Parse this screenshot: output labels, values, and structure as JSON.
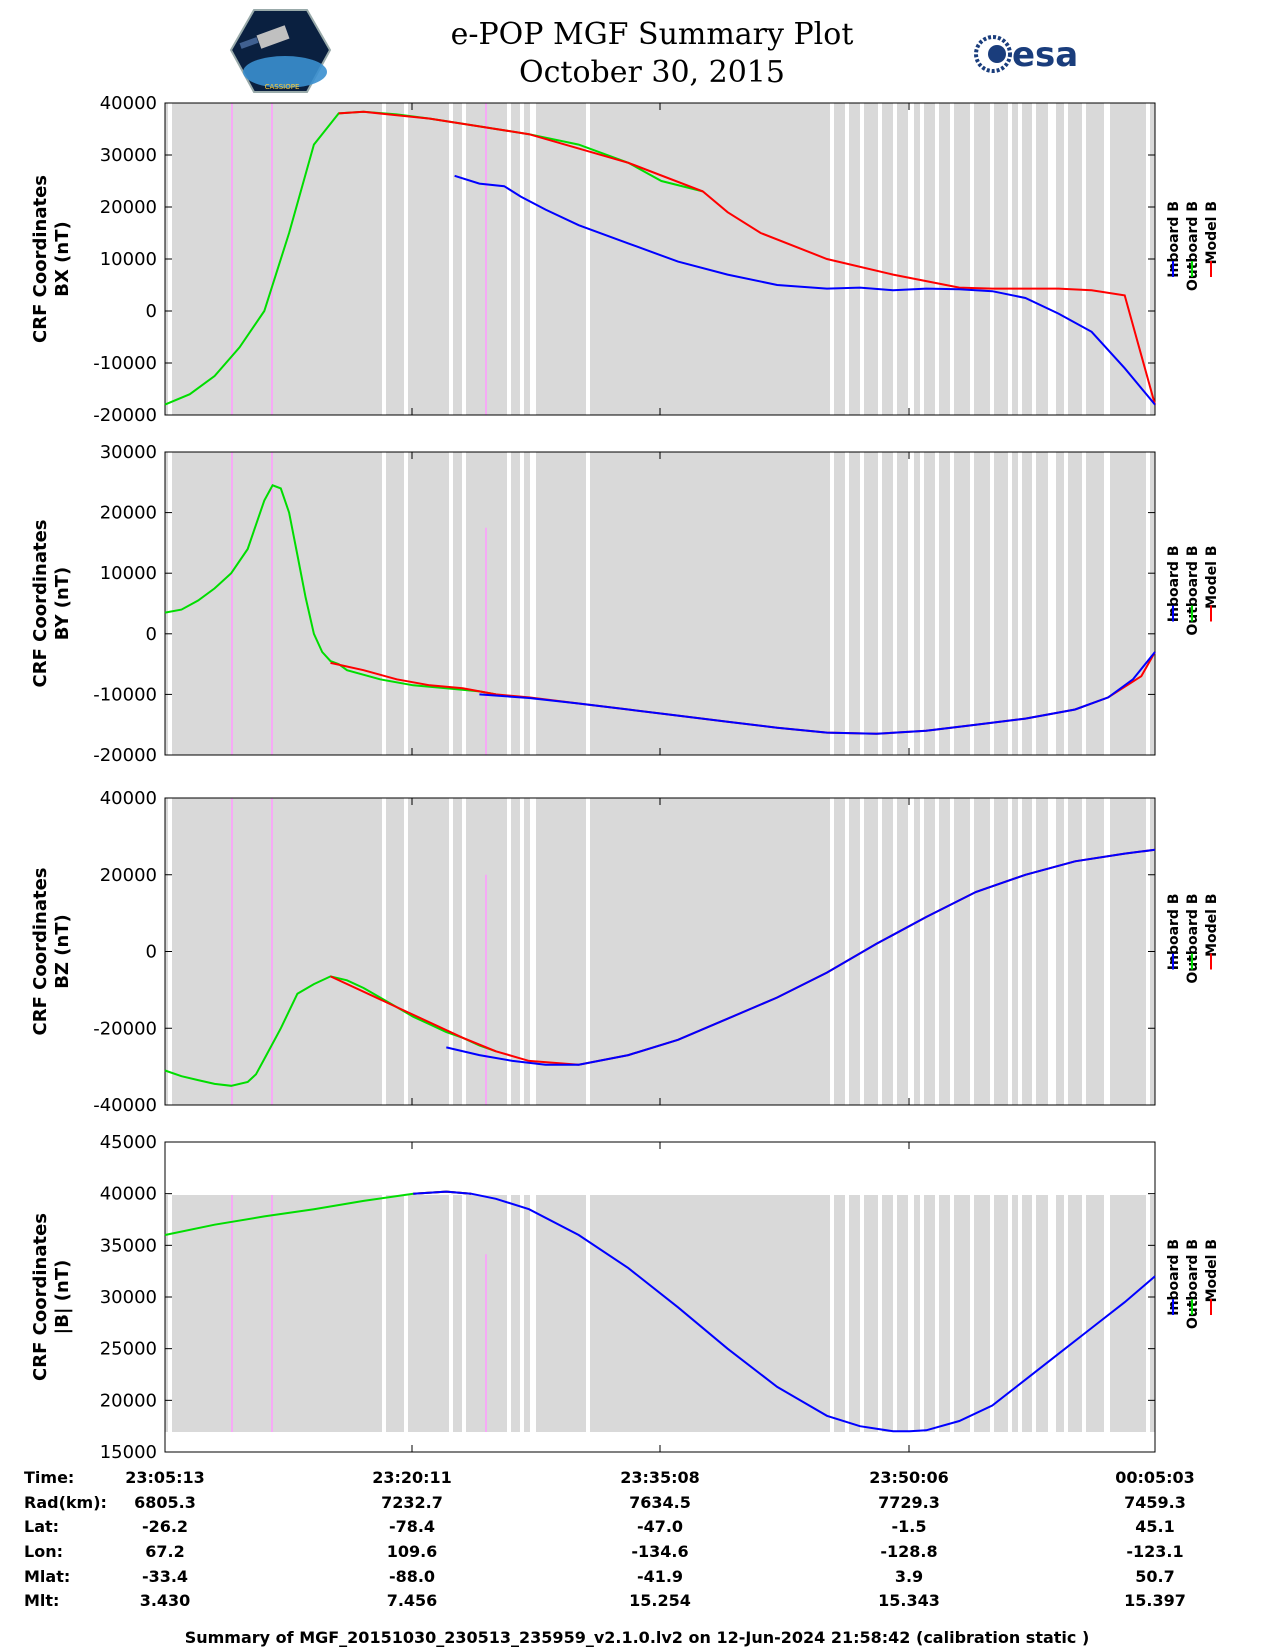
{
  "header": {
    "title": "e-POP MGF Summary Plot",
    "subtitle": "October 30, 2015",
    "logo_left": "CASSIOPE",
    "logo_right": "esa"
  },
  "colors": {
    "inboard": "#0000ff",
    "outboard": "#00dd00",
    "model": "#ff0000",
    "gap_background": "#d9d9d9",
    "marker": "#ff99ff"
  },
  "legend": [
    "Inboard B",
    "Outboard B",
    "Model B"
  ],
  "footer": "Summary of MGF_20151030_230513_235959_v2.1.0.lv2 on 12-Jun-2024 21:58:42 (calibration static )",
  "table": {
    "labels": [
      "Time:",
      "Rad(km):",
      "Lat:",
      "Lon:",
      "Mlat:",
      "Mlt:"
    ],
    "columns": [
      [
        "23:05:13",
        "6805.3",
        "-26.2",
        "67.2",
        "-33.4",
        "3.430"
      ],
      [
        "23:20:11",
        "7232.7",
        "-78.4",
        "109.6",
        "-88.0",
        "7.456"
      ],
      [
        "23:35:08",
        "7634.5",
        "-47.0",
        "-134.6",
        "-41.9",
        "15.254"
      ],
      [
        "23:50:06",
        "7729.3",
        "-1.5",
        "-128.8",
        "3.9",
        "15.343"
      ],
      [
        "00:05:03",
        "7459.3",
        "45.1",
        "-123.1",
        "50.7",
        "15.397"
      ]
    ]
  },
  "chart_data": [
    {
      "type": "line",
      "ylabel": [
        "CRF Coordinates",
        "BX (nT)"
      ],
      "ylim": [
        -20000,
        40000
      ],
      "yticks": [
        -20000,
        -10000,
        0,
        10000,
        20000,
        30000,
        40000
      ],
      "x_unit": "minutes since 23:05:13",
      "xlim": [
        0,
        59.83
      ],
      "series": [
        {
          "name": "Outboard B",
          "color": "outboard",
          "x": [
            0,
            1.5,
            3,
            4.5,
            6,
            7.5,
            9,
            10.5,
            12,
            14,
            16,
            19,
            22,
            25,
            28,
            30,
            32.5
          ],
          "y": [
            -18000,
            -16000,
            -12500,
            -7000,
            0,
            15000,
            32000,
            38000,
            38300,
            37800,
            37000,
            35500,
            34000,
            32000,
            28500,
            25000,
            23000
          ]
        },
        {
          "name": "Model B",
          "color": "model",
          "x": [
            10.5,
            12,
            16,
            22,
            28,
            32.5,
            34,
            36,
            40,
            44,
            48,
            50,
            54,
            56,
            58,
            59.83
          ],
          "y": [
            38000,
            38300,
            37000,
            34000,
            28500,
            23000,
            19000,
            15000,
            10000,
            7000,
            4500,
            4300,
            4300,
            4000,
            3000,
            -18000
          ]
        },
        {
          "name": "Inboard B",
          "color": "inboard",
          "x": [
            17.5,
            19,
            20.5,
            21.5,
            23,
            25,
            28,
            31,
            34,
            37,
            40,
            42,
            44,
            46,
            48,
            50,
            52,
            54,
            56,
            58,
            59.83
          ],
          "y": [
            26000,
            24500,
            24000,
            22000,
            19500,
            16500,
            13000,
            9500,
            7000,
            5000,
            4300,
            4500,
            4000,
            4300,
            4200,
            3800,
            2500,
            -500,
            -4000,
            -11000,
            -18000
          ]
        }
      ]
    },
    {
      "type": "line",
      "ylabel": [
        "CRF Coordinates",
        "BY (nT)"
      ],
      "ylim": [
        -20000,
        30000
      ],
      "yticks": [
        -20000,
        -10000,
        0,
        10000,
        20000,
        30000
      ],
      "x_unit": "minutes since 23:05:13",
      "xlim": [
        0,
        59.83
      ],
      "series": [
        {
          "name": "Outboard B",
          "color": "outboard",
          "x": [
            0,
            1,
            2,
            3,
            4,
            5,
            5.5,
            6,
            6.5,
            7,
            7.5,
            8,
            8.5,
            9,
            9.5,
            10,
            10.5,
            11,
            13,
            15,
            17,
            19,
            20
          ],
          "y": [
            3500,
            4000,
            5500,
            7500,
            10000,
            14000,
            18000,
            22000,
            24500,
            24000,
            20000,
            13000,
            6000,
            0,
            -3000,
            -4500,
            -5000,
            -6000,
            -7500,
            -8500,
            -9000,
            -9500,
            -10000
          ]
        },
        {
          "name": "Model B",
          "color": "model",
          "x": [
            10,
            12,
            14,
            16,
            18,
            20,
            22,
            25,
            28,
            31,
            34,
            37,
            40,
            43,
            46,
            49,
            52,
            55,
            57,
            59,
            59.83
          ],
          "y": [
            -4800,
            -6000,
            -7500,
            -8500,
            -9000,
            -10000,
            -10500,
            -11500,
            -12500,
            -13500,
            -14500,
            -15500,
            -16300,
            -16500,
            -16000,
            -15000,
            -14000,
            -12500,
            -10500,
            -7000,
            -3000
          ]
        },
        {
          "name": "Inboard B",
          "color": "inboard",
          "x": [
            19,
            22,
            25,
            28,
            31,
            34,
            37,
            40,
            43,
            46,
            49,
            52,
            55,
            57,
            58.5,
            59.83
          ],
          "y": [
            -10000,
            -10600,
            -11500,
            -12500,
            -13500,
            -14500,
            -15500,
            -16300,
            -16500,
            -16000,
            -15000,
            -14000,
            -12500,
            -10500,
            -7500,
            -3000
          ]
        }
      ]
    },
    {
      "type": "line",
      "ylabel": [
        "CRF Coordinates",
        "BZ (nT)"
      ],
      "ylim": [
        -40000,
        40000
      ],
      "yticks": [
        -40000,
        -20000,
        0,
        20000,
        40000
      ],
      "x_unit": "minutes since 23:05:13",
      "xlim": [
        0,
        59.83
      ],
      "series": [
        {
          "name": "Outboard B",
          "color": "outboard",
          "x": [
            0,
            1,
            2,
            3,
            4,
            5,
            5.5,
            6,
            7,
            8,
            9,
            10,
            11,
            12,
            13,
            14,
            15,
            16,
            17,
            18,
            19,
            20
          ],
          "y": [
            -31000,
            -32500,
            -33500,
            -34500,
            -35000,
            -34000,
            -32000,
            -28000,
            -20000,
            -11000,
            -8500,
            -6500,
            -7500,
            -9500,
            -12000,
            -14500,
            -17000,
            -19000,
            -21000,
            -22500,
            -24500,
            -26000
          ]
        },
        {
          "name": "Model B",
          "color": "model",
          "x": [
            10,
            14,
            18,
            20,
            22,
            25,
            28,
            31,
            34,
            37,
            40,
            43,
            46,
            49,
            52,
            55,
            58,
            59.83
          ],
          "y": [
            -6500,
            -14500,
            -22500,
            -26000,
            -28500,
            -29500,
            -27000,
            -23000,
            -17500,
            -12000,
            -5500,
            2000,
            9000,
            15500,
            20000,
            23500,
            25500,
            26500
          ]
        },
        {
          "name": "Inboard B",
          "color": "inboard",
          "x": [
            17,
            19,
            21,
            23,
            25,
            28,
            31,
            34,
            37,
            40,
            43,
            46,
            49,
            52,
            55,
            58,
            59.83
          ],
          "y": [
            -25000,
            -27000,
            -28500,
            -29500,
            -29500,
            -27000,
            -23000,
            -17500,
            -12000,
            -5500,
            2000,
            9000,
            15500,
            20000,
            23500,
            25500,
            26500
          ]
        }
      ]
    },
    {
      "type": "line",
      "ylabel": [
        "CRF Coordinates",
        "|B| (nT)"
      ],
      "ylim": [
        15000,
        45000
      ],
      "yticks": [
        15000,
        20000,
        25000,
        30000,
        35000,
        40000,
        45000
      ],
      "x_unit": "minutes since 23:05:13",
      "xlim": [
        0,
        59.83
      ],
      "series": [
        {
          "name": "Outboard B",
          "color": "outboard",
          "x": [
            0,
            3,
            6,
            9,
            12,
            15,
            17,
            18.5
          ],
          "y": [
            36000,
            37000,
            37800,
            38500,
            39300,
            40000,
            40200,
            40000
          ]
        },
        {
          "name": "Model B",
          "color": "model",
          "x": [
            15,
            17,
            18.5
          ],
          "y": [
            40000,
            40200,
            40000
          ]
        },
        {
          "name": "Inboard B",
          "color": "inboard",
          "x": [
            15,
            17,
            18.5,
            20,
            22,
            25,
            28,
            31,
            34,
            37,
            40,
            42,
            44,
            45,
            46,
            48,
            50,
            52,
            54,
            56,
            58,
            59.83
          ],
          "y": [
            40000,
            40200,
            40000,
            39500,
            38500,
            36000,
            32800,
            29000,
            25000,
            21300,
            18500,
            17500,
            17000,
            17000,
            17100,
            18000,
            19500,
            22000,
            24500,
            27000,
            29500,
            32000
          ]
        }
      ]
    }
  ]
}
